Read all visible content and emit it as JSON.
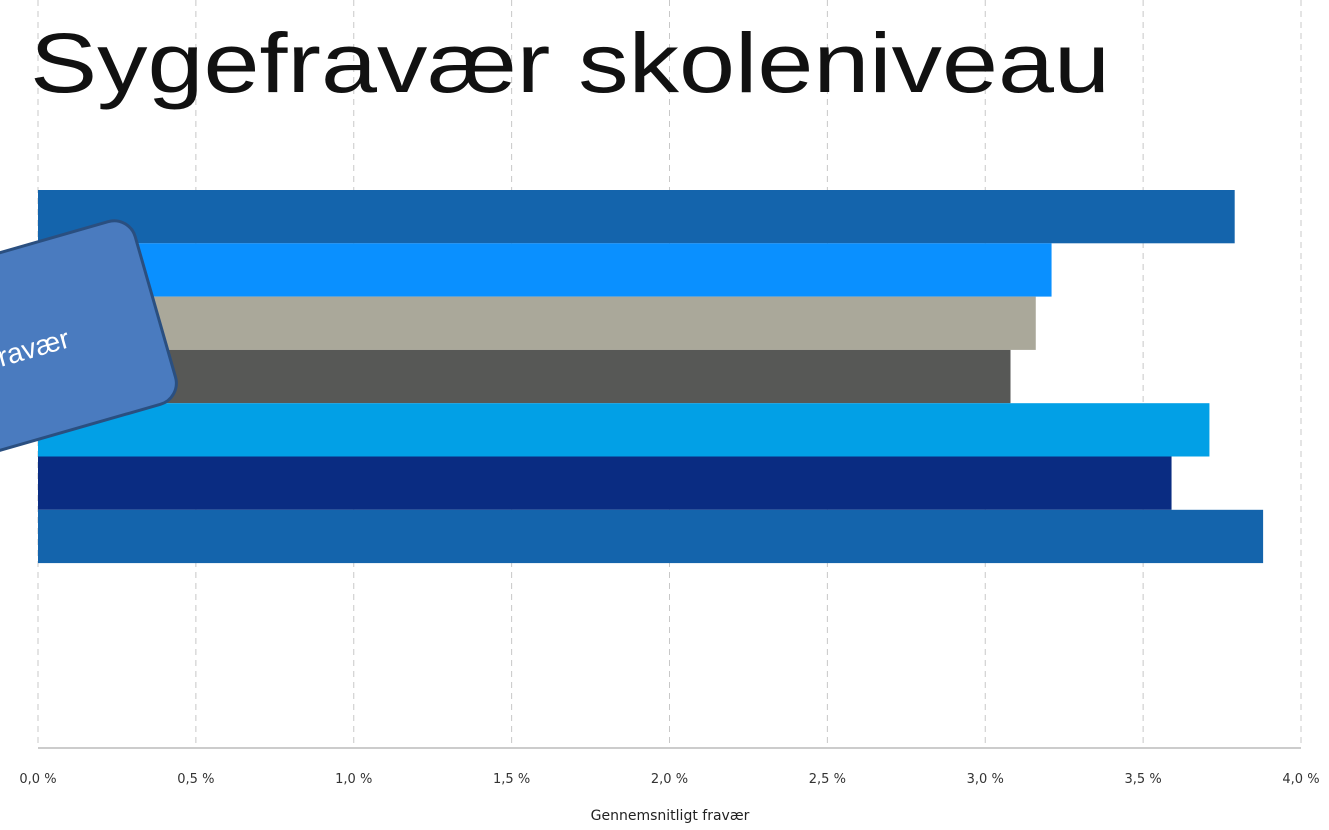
{
  "chart_data": {
    "type": "barh",
    "title": "Sygefravær skoleniveau",
    "xlabel": "Gennemsnitligt fravær",
    "annotation": "ravær",
    "values": [
      3.79,
      3.21,
      3.16,
      3.08,
      3.71,
      3.59,
      3.88
    ],
    "colors": [
      "#1464ac",
      "#0a90ff",
      "#aaa89a",
      "#575856",
      "#02a0e6",
      "#0a2c82",
      "#1464ac"
    ],
    "xlim": [
      0,
      4
    ],
    "xticks": [
      {
        "value": 0,
        "label": "0,0 %"
      },
      {
        "value": 0.5,
        "label": "0,5 %"
      },
      {
        "value": 1,
        "label": "1,0 %"
      },
      {
        "value": 1.5,
        "label": "1,5 %"
      },
      {
        "value": 2,
        "label": "2,0 %"
      },
      {
        "value": 2.5,
        "label": "2,5 %"
      },
      {
        "value": 3,
        "label": "3,0 %"
      },
      {
        "value": 3.5,
        "label": "3,5 %"
      },
      {
        "value": 4,
        "label": "4,0 %"
      }
    ],
    "grid": true
  }
}
